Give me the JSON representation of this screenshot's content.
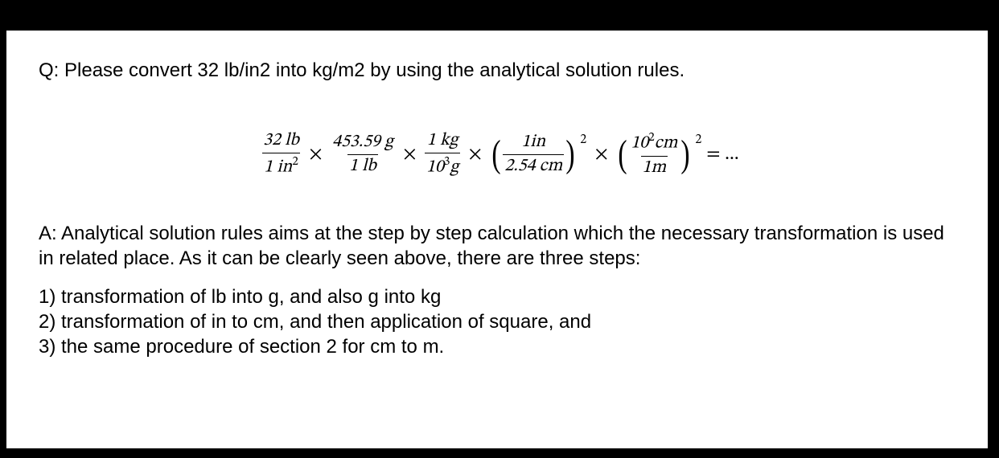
{
  "question": "Q: Please convert 32 lb/in2 into kg/m2 by using the analytical solution rules.",
  "equation": {
    "f1": {
      "num": "32 lb",
      "den_base": "1 in",
      "den_exp": "2"
    },
    "f2": {
      "num": "453.59 g",
      "den": "1 lb"
    },
    "f3": {
      "num": "1 kg",
      "den_base": "10",
      "den_exp": "3",
      "den_unit": "g"
    },
    "f4": {
      "num": "1in",
      "den": "2.54 cm",
      "outer_exp": "2"
    },
    "f5": {
      "num_base": "10",
      "num_exp": "2",
      "num_unit": "cm",
      "den": "1m",
      "outer_exp": "2"
    },
    "tail": "= ..."
  },
  "answer_intro": "A: Analytical solution rules aims at the step by step calculation which the necessary transformation is used in related place. As it can be clearly seen above, there are three steps:",
  "steps": {
    "s1": "1) transformation of lb into g, and also g into kg",
    "s2": "2) transformation of in to cm, and then application of square, and",
    "s3": "3) the same procedure of section 2 for cm to m."
  },
  "colors": {
    "page_bg": "#ffffff",
    "outer_bg": "#000000",
    "text": "#000000"
  }
}
